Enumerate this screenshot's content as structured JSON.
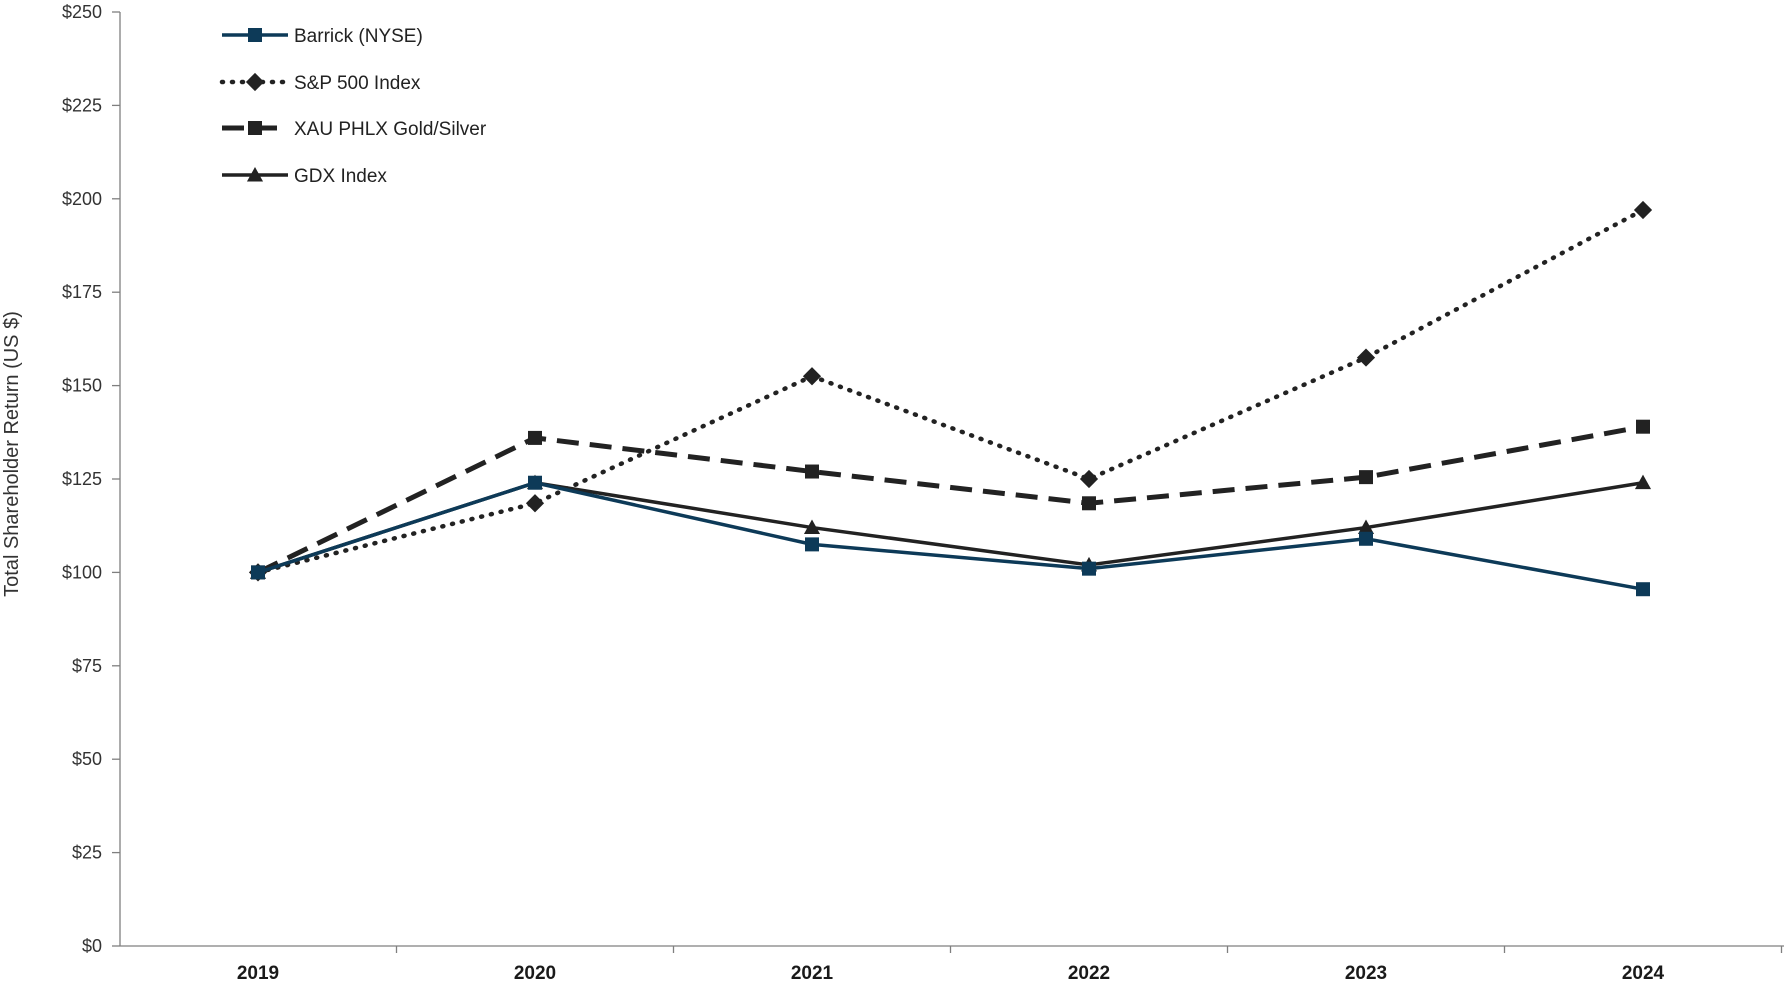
{
  "chart_data": {
    "type": "line",
    "title": "",
    "xlabel": "",
    "ylabel": "Total Shareholder Return (US $)",
    "categories": [
      "2019",
      "2020",
      "2021",
      "2022",
      "2023",
      "2024"
    ],
    "ylim": [
      0,
      250
    ],
    "y_ticks": [
      0,
      25,
      50,
      75,
      100,
      125,
      150,
      175,
      200,
      225,
      250
    ],
    "y_tick_labels": [
      "$0",
      "$25",
      "$50",
      "$75",
      "$100",
      "$125",
      "$150",
      "$175",
      "$200",
      "$225",
      "$250"
    ],
    "grid": false,
    "legend_position": "top-left",
    "series": [
      {
        "name": "Barrick (NYSE)",
        "values": [
          100,
          124,
          107.5,
          101,
          109,
          95.5
        ],
        "color": "#0d3a58",
        "line_style": "solid",
        "marker": "square"
      },
      {
        "name": "S&P 500 Index",
        "values": [
          100,
          118.5,
          152.5,
          125,
          157.5,
          197
        ],
        "color": "#222222",
        "line_style": "dotted",
        "marker": "diamond"
      },
      {
        "name": "XAU PHLX Gold/Silver",
        "values": [
          100,
          136,
          127,
          118.5,
          125.5,
          139
        ],
        "color": "#222222",
        "line_style": "dashed",
        "marker": "square"
      },
      {
        "name": "GDX Index",
        "values": [
          100,
          124,
          112,
          102,
          112,
          124
        ],
        "color": "#222222",
        "line_style": "solid",
        "marker": "triangle"
      }
    ]
  }
}
